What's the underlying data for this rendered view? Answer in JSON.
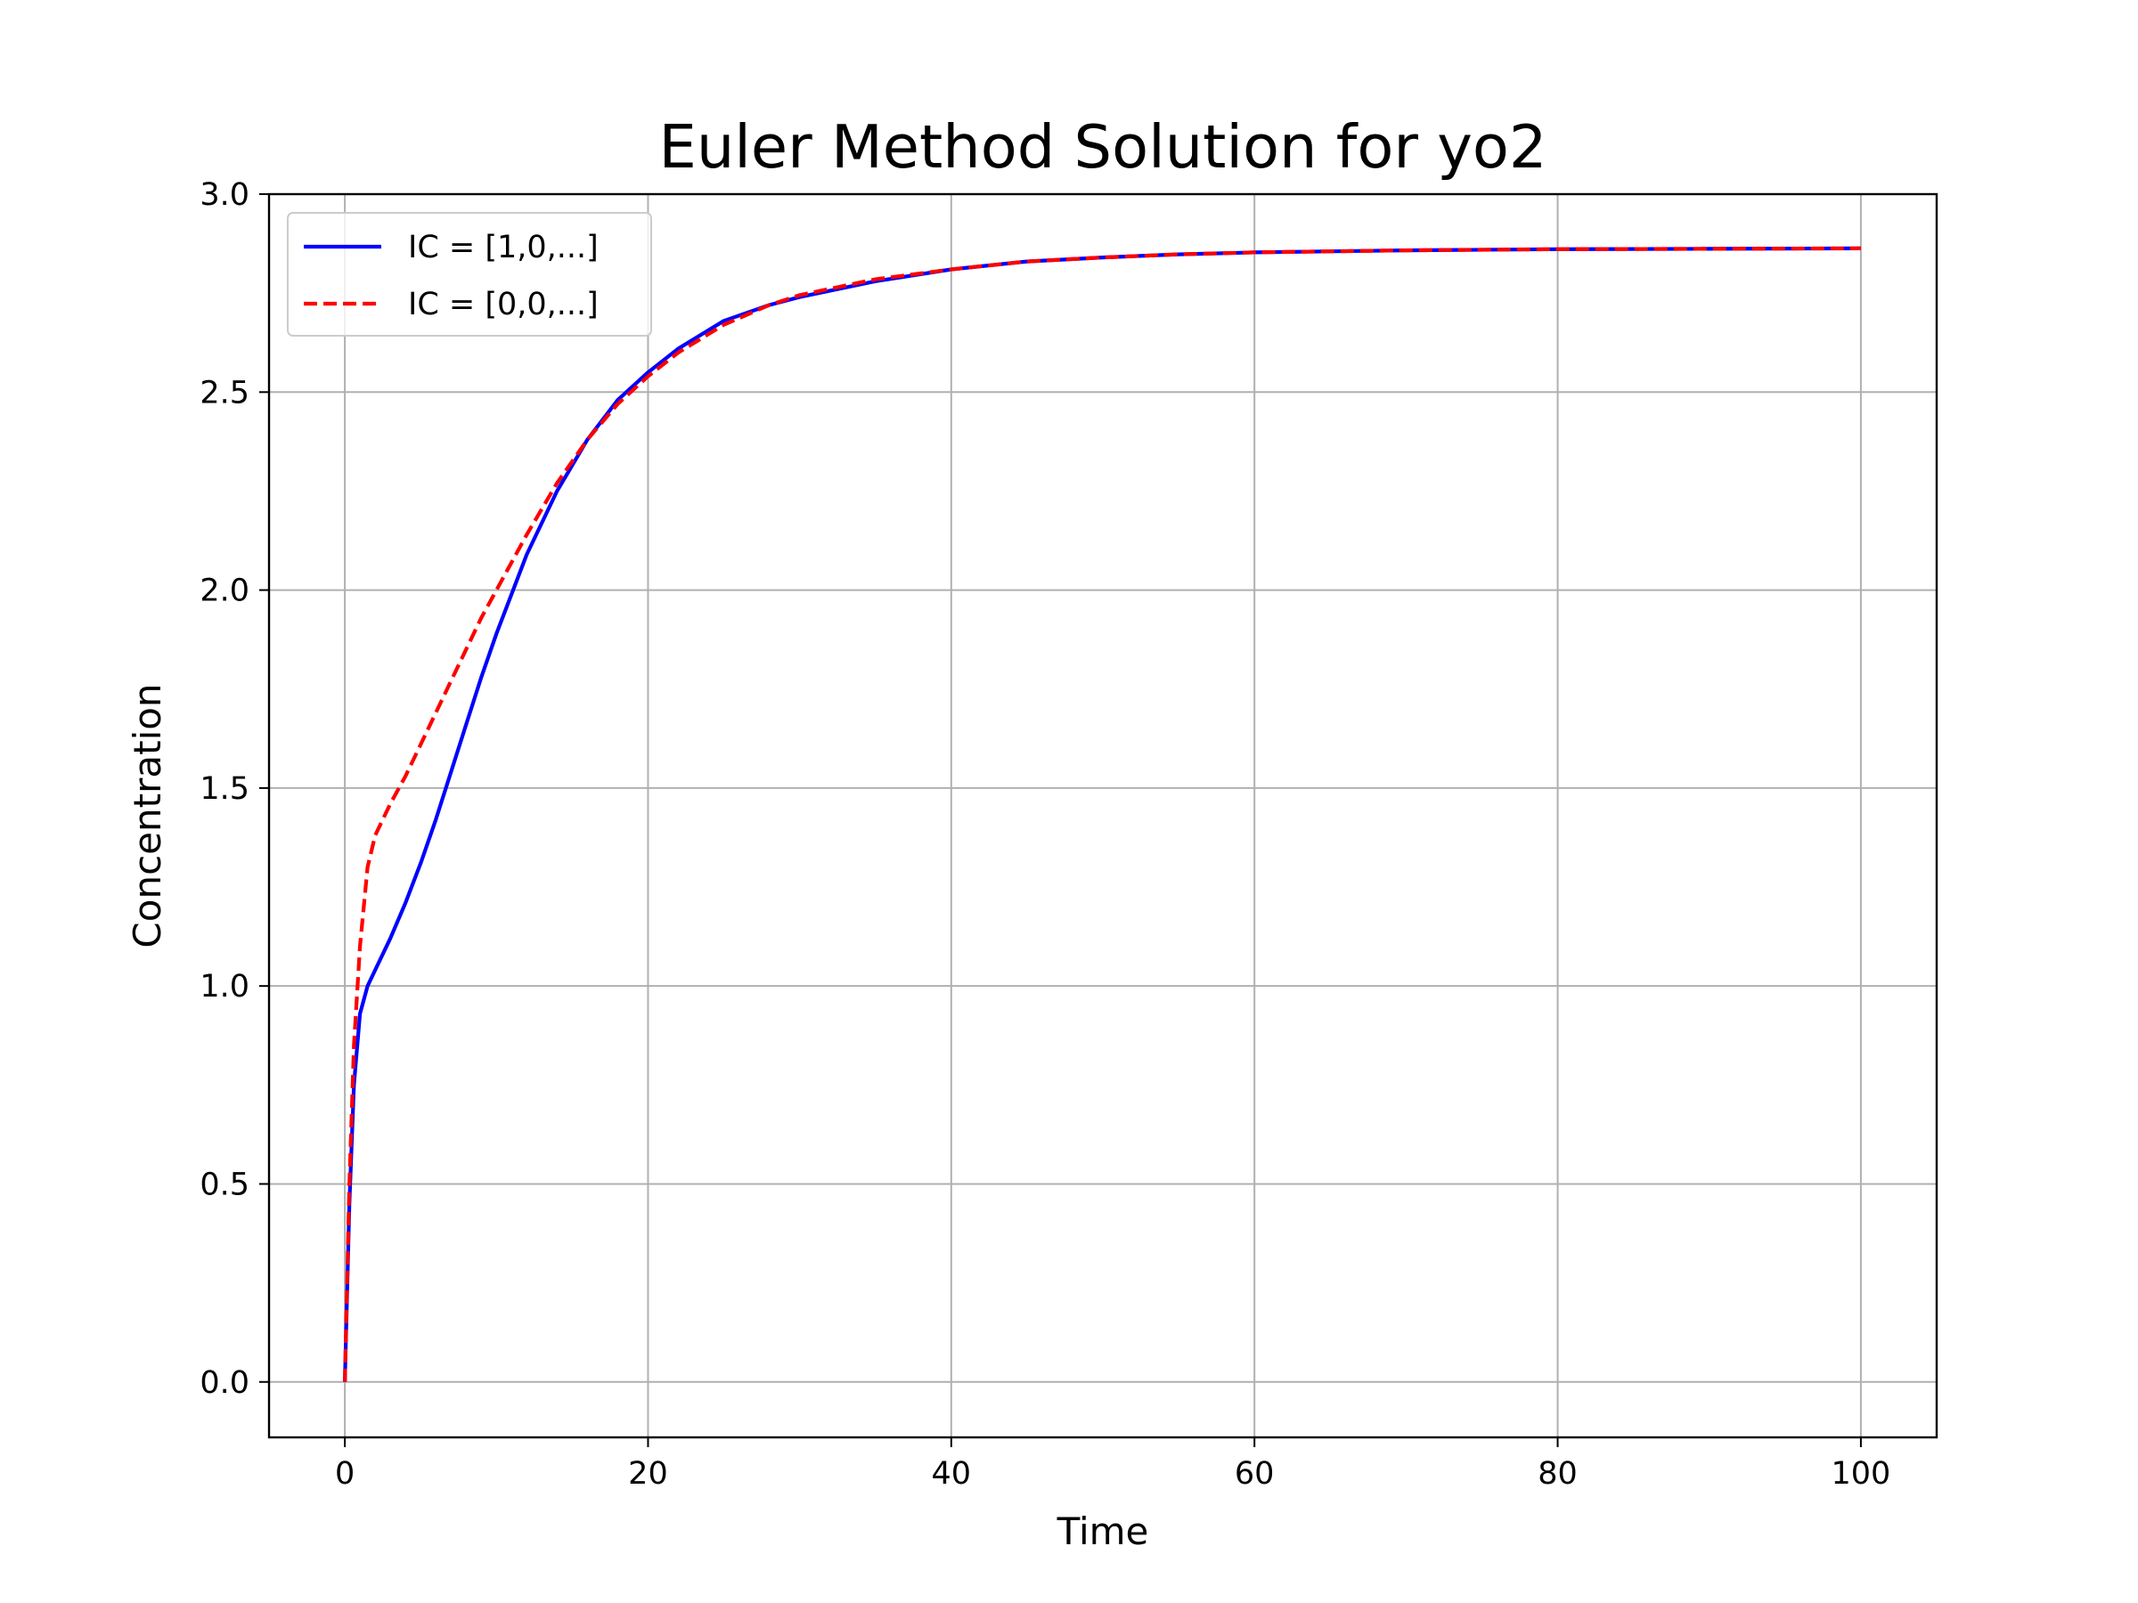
{
  "chart_data": {
    "type": "line",
    "title": "Euler Method Solution for yo2",
    "xlabel": "Time",
    "ylabel": "Concentration",
    "xlim": [
      -5,
      105
    ],
    "ylim": [
      -0.14,
      3.0
    ],
    "xticks": [
      0,
      20,
      40,
      60,
      80,
      100
    ],
    "xtick_labels": [
      "0",
      "20",
      "40",
      "60",
      "80",
      "100"
    ],
    "yticks": [
      0.0,
      0.5,
      1.0,
      1.5,
      2.0,
      2.5,
      3.0
    ],
    "ytick_labels": [
      "0.0",
      "0.5",
      "1.0",
      "1.5",
      "2.0",
      "2.5",
      "3.0"
    ],
    "grid": true,
    "legend_position": "top-left",
    "series": [
      {
        "name": "IC = [1,0,...]",
        "color": "#0000ff",
        "style": "solid",
        "x": [
          0,
          0.3,
          0.6,
          1,
          1.5,
          2,
          3,
          4,
          5,
          6,
          7,
          8,
          9,
          10,
          12,
          14,
          16,
          18,
          20,
          22,
          25,
          28,
          30,
          35,
          40,
          45,
          50,
          55,
          60,
          70,
          80,
          90,
          100
        ],
        "y": [
          0,
          0.45,
          0.75,
          0.93,
          1.0,
          1.04,
          1.12,
          1.21,
          1.31,
          1.42,
          1.54,
          1.66,
          1.78,
          1.89,
          2.09,
          2.25,
          2.38,
          2.48,
          2.55,
          2.61,
          2.68,
          2.72,
          2.74,
          2.78,
          2.81,
          2.83,
          2.84,
          2.848,
          2.853,
          2.858,
          2.861,
          2.862,
          2.863
        ]
      },
      {
        "name": "IC = [0,0,...]",
        "color": "#ff0000",
        "style": "dashed",
        "x": [
          0,
          0.3,
          0.6,
          1,
          1.5,
          2,
          3,
          4,
          5,
          6,
          7,
          8,
          9,
          10,
          12,
          14,
          16,
          18,
          20,
          22,
          25,
          28,
          30,
          35,
          40,
          45,
          50,
          55,
          60,
          70,
          80,
          90,
          100
        ],
        "y": [
          0,
          0.5,
          0.85,
          1.1,
          1.3,
          1.38,
          1.46,
          1.53,
          1.61,
          1.69,
          1.77,
          1.85,
          1.93,
          2.0,
          2.14,
          2.27,
          2.38,
          2.47,
          2.54,
          2.6,
          2.67,
          2.72,
          2.745,
          2.785,
          2.81,
          2.83,
          2.84,
          2.848,
          2.853,
          2.858,
          2.861,
          2.862,
          2.863
        ]
      }
    ]
  }
}
